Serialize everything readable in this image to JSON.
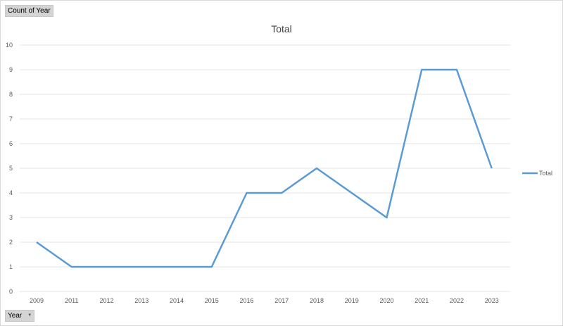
{
  "buttons": {
    "count_label": "Count of Year",
    "year_label": "Year"
  },
  "chart_data": {
    "type": "line",
    "title": "Total",
    "categories": [
      "2009",
      "2011",
      "2012",
      "2013",
      "2014",
      "2015",
      "2016",
      "2017",
      "2018",
      "2019",
      "2020",
      "2021",
      "2022",
      "2023"
    ],
    "series": [
      {
        "name": "Total",
        "values": [
          2,
          1,
          1,
          1,
          1,
          1,
          4,
          4,
          5,
          4,
          3,
          9,
          9,
          5
        ]
      }
    ],
    "ylim": [
      0,
      10
    ],
    "yticks": [
      0,
      1,
      2,
      3,
      4,
      5,
      6,
      7,
      8,
      9,
      10
    ],
    "grid": true,
    "legend": "right",
    "line_color": "#5b9bd5",
    "grid_color": "#e6e6e6"
  }
}
